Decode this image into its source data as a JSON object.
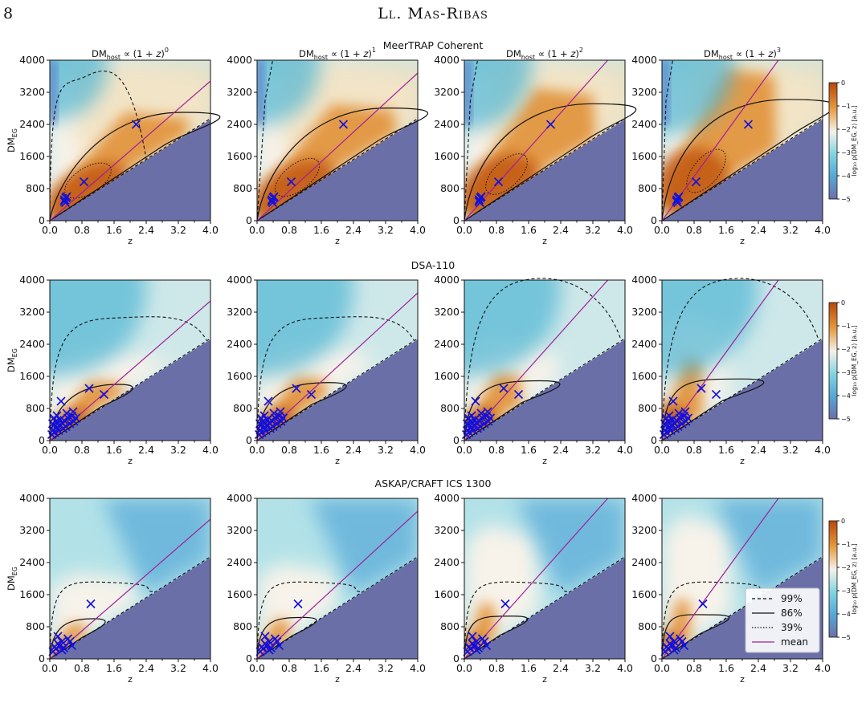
{
  "page": {
    "number": "8",
    "running_head": "Ll. Mas-Ribas"
  },
  "figure": {
    "surveys": [
      "MeerTRAP Coherent",
      "DSA-110",
      "ASKAP/CRAFT ICS 1300"
    ],
    "columns": [
      {
        "exp": "0"
      },
      {
        "exp": "1"
      },
      {
        "exp": "2"
      },
      {
        "exp": "3"
      }
    ],
    "col_title_prefix": "DM",
    "col_title_sub": "host",
    "col_title_mid": " ∝ (1 + ",
    "col_title_z": "z",
    "col_title_end": ")",
    "xlabel": "z",
    "ylabel": "DM",
    "ylabel_sub": "EG",
    "colorbar": {
      "label": "log₁₀ p(DM_EG, z) [a.u.]",
      "ticks": [
        "0",
        "−1",
        "−2",
        "−3",
        "−4",
        "−5"
      ],
      "range": [
        -5,
        0
      ]
    },
    "legend": [
      {
        "label": "99%",
        "style": "dashed"
      },
      {
        "label": "86%",
        "style": "solid"
      },
      {
        "label": "39%",
        "style": "dotted"
      },
      {
        "label": "mean",
        "style": "mean"
      }
    ],
    "colors": {
      "bg_low": "#6b6fa8",
      "cyan": "#56c4d6",
      "white": "#f4f1ea",
      "orange": "#d9822b",
      "deep": "#b8460b",
      "mean_line": "#a0209a",
      "markers": "#1111dd"
    }
  },
  "chart_data": [
    {
      "type": "heatmap",
      "survey": "MeerTRAP Coherent",
      "xlabel": "z",
      "ylabel": "DM_EG",
      "xlim": [
        0,
        4
      ],
      "ylim": [
        0,
        4000
      ],
      "xticks": [
        "0.0",
        "0.8",
        "1.6",
        "2.4",
        "3.2",
        "4.0"
      ],
      "xticks_minor": [
        "0.4",
        "1.2",
        "2.0",
        "2.8",
        "3.6"
      ],
      "yticks": [
        "0",
        "800",
        "1600",
        "2400",
        "3200",
        "4000"
      ],
      "frbs": [
        [
          0.37,
          520
        ],
        [
          0.39,
          450
        ],
        [
          0.4,
          570
        ],
        [
          0.36,
          480
        ],
        [
          0.42,
          600
        ],
        [
          0.85,
          970
        ],
        [
          2.15,
          2400
        ]
      ]
    },
    {
      "type": "heatmap",
      "survey": "DSA-110",
      "xlabel": "z",
      "ylabel": "DM_EG",
      "xlim": [
        0,
        4
      ],
      "ylim": [
        0,
        4000
      ],
      "xticks": [
        "0.0",
        "0.8",
        "1.6",
        "2.4",
        "3.2",
        "4.0"
      ],
      "xticks_minor": [
        "0.4",
        "1.2",
        "2.0",
        "2.8",
        "3.6"
      ],
      "yticks": [
        "0",
        "800",
        "1600",
        "2400",
        "3200",
        "4000"
      ],
      "frbs": [
        [
          0.05,
          150
        ],
        [
          0.08,
          260
        ],
        [
          0.1,
          380
        ],
        [
          0.12,
          200
        ],
        [
          0.15,
          480
        ],
        [
          0.18,
          330
        ],
        [
          0.2,
          420
        ],
        [
          0.22,
          250
        ],
        [
          0.25,
          520
        ],
        [
          0.27,
          370
        ],
        [
          0.3,
          440
        ],
        [
          0.33,
          300
        ],
        [
          0.36,
          500
        ],
        [
          0.4,
          350
        ],
        [
          0.45,
          560
        ],
        [
          0.5,
          420
        ],
        [
          0.55,
          610
        ],
        [
          0.6,
          480
        ],
        [
          0.65,
          560
        ],
        [
          0.1,
          560
        ],
        [
          0.07,
          420
        ],
        [
          0.28,
          980
        ],
        [
          0.98,
          1300
        ],
        [
          1.35,
          1150
        ],
        [
          0.18,
          620
        ],
        [
          0.42,
          680
        ],
        [
          0.58,
          720
        ]
      ]
    },
    {
      "type": "heatmap",
      "survey": "ASKAP/CRAFT ICS 1300",
      "xlabel": "z",
      "ylabel": "DM_EG",
      "xlim": [
        0,
        4
      ],
      "ylim": [
        0,
        4000
      ],
      "xticks": [
        "0.0",
        "0.8",
        "1.6",
        "2.4",
        "3.2",
        "4.0"
      ],
      "xticks_minor": [
        "0.4",
        "1.2",
        "2.0",
        "2.8",
        "3.6"
      ],
      "yticks": [
        "0",
        "800",
        "1600",
        "2400",
        "3200",
        "4000"
      ],
      "frbs": [
        [
          0.08,
          180
        ],
        [
          0.12,
          300
        ],
        [
          0.15,
          250
        ],
        [
          0.2,
          380
        ],
        [
          0.25,
          320
        ],
        [
          0.3,
          430
        ],
        [
          0.35,
          270
        ],
        [
          0.45,
          500
        ],
        [
          0.5,
          430
        ],
        [
          0.55,
          330
        ],
        [
          0.2,
          560
        ],
        [
          0.3,
          220
        ],
        [
          1.02,
          1370
        ]
      ]
    }
  ]
}
